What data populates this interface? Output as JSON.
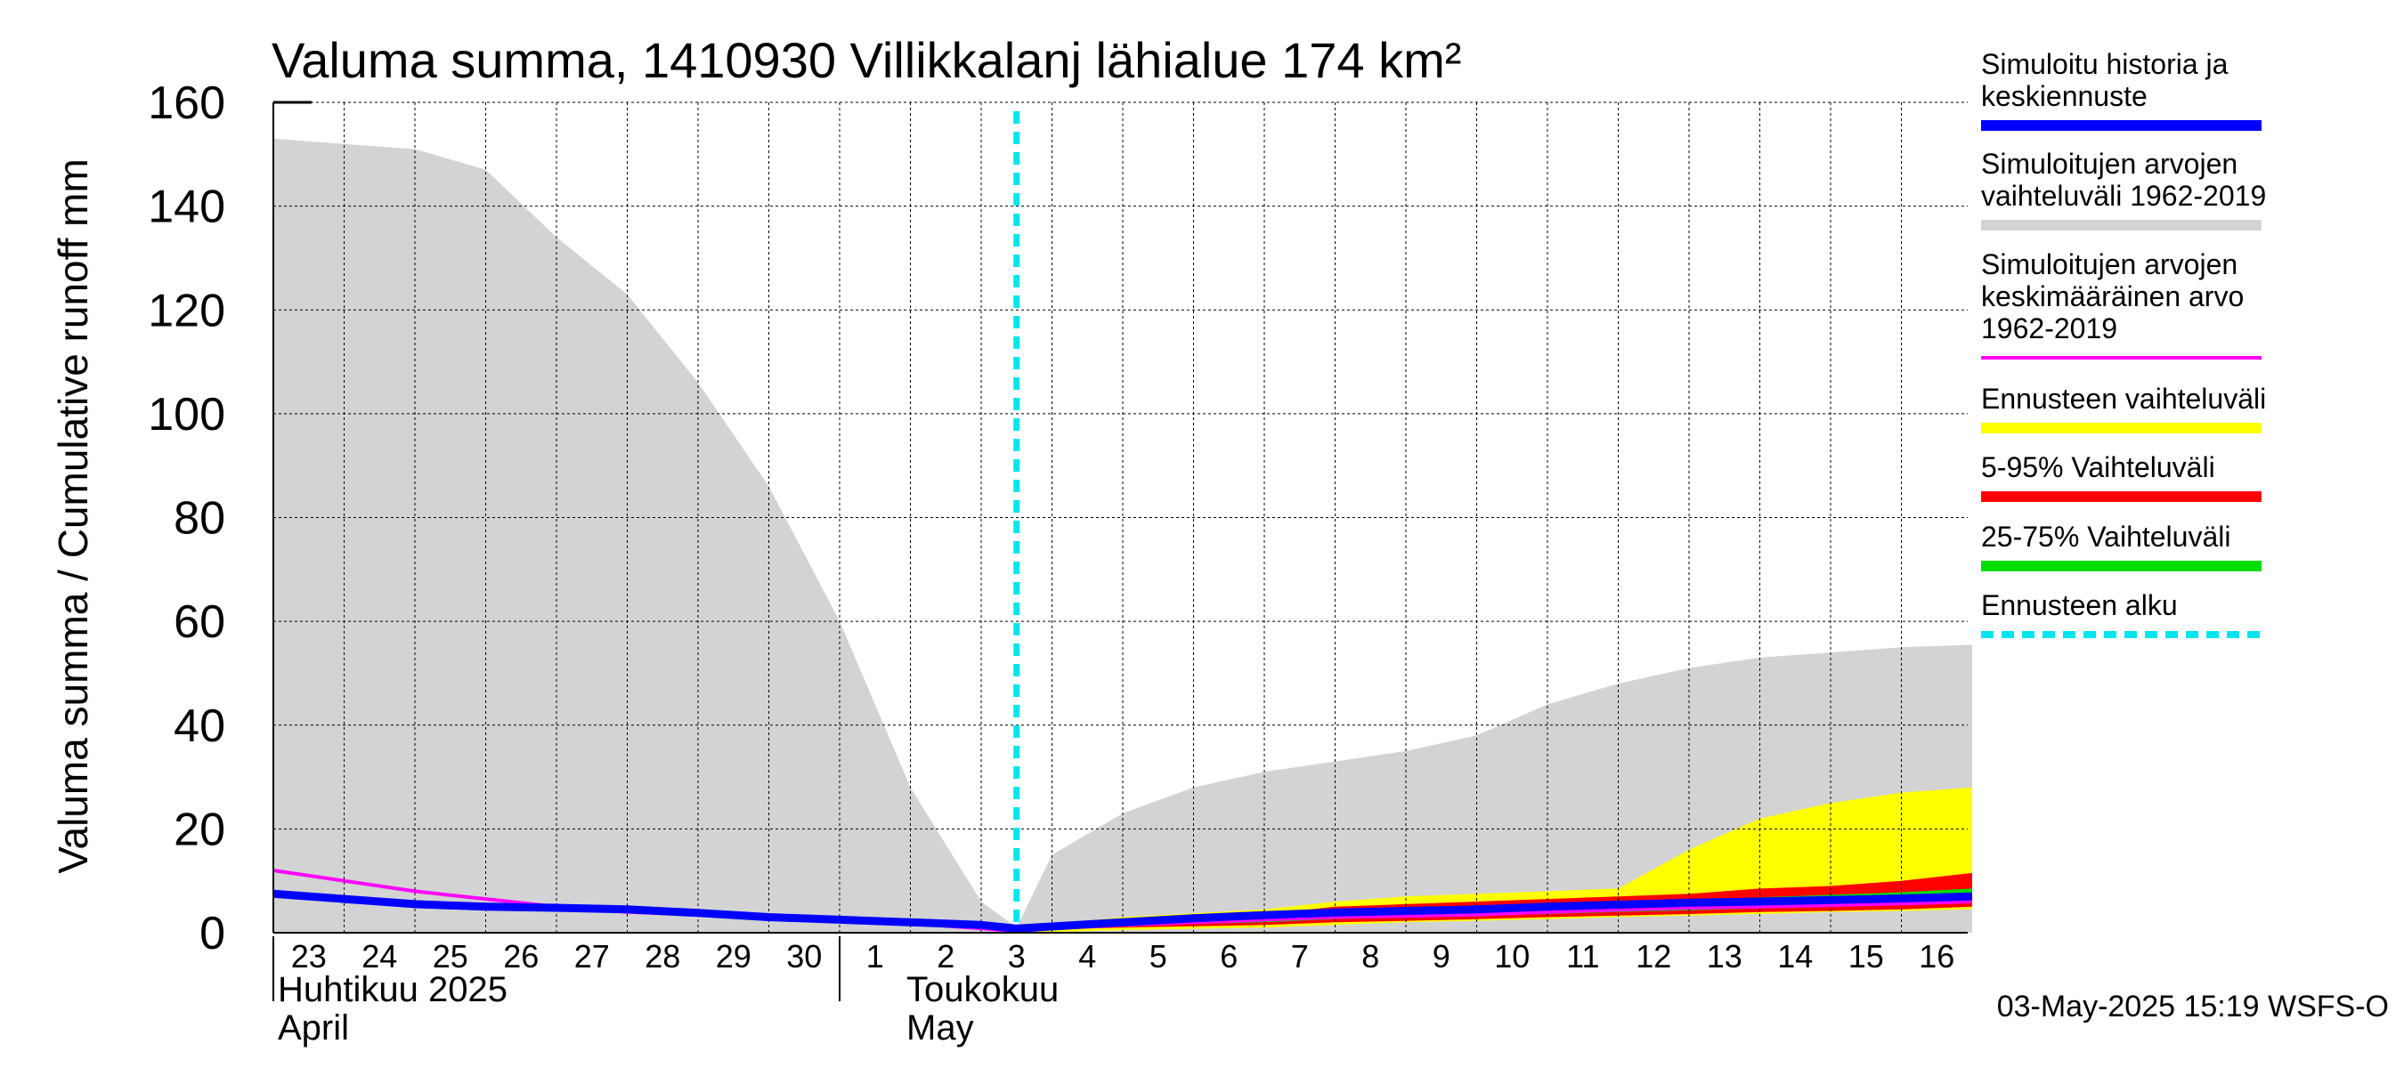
{
  "chart_data": {
    "type": "area",
    "title": "Valuma summa, 1410930 Villikkalanj lähialue 174 km²",
    "ylabel": "Valuma summa / Cumulative runoff    mm",
    "ylim": [
      0,
      160
    ],
    "yticks": [
      "0",
      "20",
      "40",
      "60",
      "80",
      "100",
      "120",
      "140",
      "160"
    ],
    "x_day_labels": [
      "23",
      "24",
      "25",
      "26",
      "27",
      "28",
      "29",
      "30",
      "1",
      "2",
      "3",
      "4",
      "5",
      "6",
      "7",
      "8",
      "9",
      "10",
      "11",
      "12",
      "13",
      "14",
      "15",
      "16"
    ],
    "months": [
      {
        "line1": "Huhtikuu  2025",
        "line2": "April"
      },
      {
        "line1": "Toukokuu",
        "line2": "May"
      }
    ],
    "forecast_start_day": 10.5,
    "grid": true,
    "legend_position": "right",
    "series": [
      {
        "name": "Simuloitujen arvojen vaihteluväli 1962-2019",
        "kind": "band",
        "color": "#d3d3d3",
        "x": [
          0,
          1,
          2,
          3,
          4,
          5,
          6,
          7,
          8,
          9,
          10,
          10.5,
          11,
          12,
          13,
          14,
          15,
          16,
          17,
          18,
          19,
          20,
          21,
          22,
          23,
          24
        ],
        "upper": [
          153,
          152,
          151,
          147,
          134,
          123,
          106,
          86,
          60,
          28,
          6,
          1,
          15,
          23,
          28,
          31,
          33,
          35,
          38,
          44,
          48,
          51,
          53,
          54,
          55,
          55.5
        ],
        "lower": [
          0,
          0,
          0,
          0,
          0,
          0,
          0,
          0,
          0,
          0,
          0,
          0,
          0,
          0,
          0,
          0,
          0,
          0,
          0,
          0,
          0,
          0,
          0,
          0,
          0,
          0
        ]
      },
      {
        "name": "Ennusteen vaihteluväli",
        "kind": "band",
        "color": "#ffff00",
        "x": [
          10.5,
          12,
          14,
          15,
          16,
          17,
          18,
          19,
          20,
          21,
          22,
          23,
          24
        ],
        "upper": [
          1,
          3,
          4.5,
          6,
          7,
          7.5,
          8,
          8.5,
          16,
          22,
          25,
          27,
          28
        ],
        "lower": [
          0,
          0.5,
          1,
          1.5,
          2,
          2.3,
          2.6,
          3,
          3.3,
          3.6,
          4,
          4.2,
          4.5
        ]
      },
      {
        "name": "5-95% Vaihteluväli",
        "kind": "band",
        "color": "#ff0000",
        "x": [
          10.5,
          12,
          14,
          15,
          16,
          17,
          18,
          19,
          20,
          21,
          22,
          23,
          24
        ],
        "upper": [
          1,
          2.5,
          3.5,
          5,
          5.5,
          6,
          6.5,
          7,
          7.5,
          8.5,
          9,
          10,
          11.5
        ],
        "lower": [
          0.5,
          1,
          1.5,
          2,
          2.3,
          2.6,
          3,
          3.3,
          3.6,
          4,
          4.2,
          4.5,
          5
        ]
      },
      {
        "name": "25-75% Vaihteluväli",
        "kind": "band",
        "color": "#00dd00",
        "x": [
          10.5,
          12,
          14,
          15,
          16,
          17,
          18,
          19,
          20,
          21,
          22,
          23,
          24
        ],
        "upper": [
          0.8,
          2.2,
          3.2,
          4.2,
          4.6,
          5,
          5.4,
          5.8,
          6.2,
          6.8,
          7.3,
          7.8,
          8.5
        ],
        "lower": [
          0.6,
          1.4,
          2,
          2.6,
          3,
          3.3,
          3.6,
          4,
          4.3,
          4.7,
          5,
          5.4,
          5.8
        ]
      },
      {
        "name": "Simuloitujen arvojen keskimääräinen arvo 1962-2019",
        "kind": "line",
        "color": "#ff00ff",
        "x": [
          0,
          1,
          2,
          3,
          4,
          5,
          6,
          7,
          8,
          9,
          10,
          10.5,
          11,
          12,
          13,
          14,
          15,
          16,
          17,
          18,
          19,
          20,
          21,
          22,
          23,
          24
        ],
        "values": [
          12,
          10,
          8,
          6.5,
          5,
          4,
          3.5,
          3,
          2.5,
          1.8,
          0.8,
          0.3,
          0.8,
          1.5,
          2,
          2.5,
          3,
          3.2,
          3.5,
          4,
          4.4,
          4.8,
          5,
          5.3,
          5.6,
          6
        ]
      },
      {
        "name": "Simuloitu historia ja keskiennuste",
        "kind": "line",
        "color": "#0000ff",
        "x": [
          0,
          1,
          2,
          3,
          4,
          5,
          6,
          7,
          8,
          9,
          10,
          10.5,
          11,
          12,
          13,
          14,
          15,
          16,
          17,
          18,
          19,
          20,
          21,
          22,
          23,
          24
        ],
        "values": [
          7.5,
          6.5,
          5.5,
          5,
          4.8,
          4.5,
          3.8,
          3,
          2.5,
          2,
          1.5,
          0.8,
          1.2,
          2,
          2.8,
          3.4,
          3.9,
          4.2,
          4.5,
          5,
          5.4,
          5.8,
          6,
          6.3,
          6.6,
          7
        ]
      }
    ],
    "legend": [
      {
        "lines": [
          "Simuloitu historia ja",
          "keskiennuste"
        ],
        "color": "#0000ff",
        "style": "solid"
      },
      {
        "lines": [
          "Simuloitujen arvojen",
          "vaihteluväli 1962-2019"
        ],
        "color": "#d3d3d3",
        "style": "solid"
      },
      {
        "lines": [
          "Simuloitujen arvojen",
          "keskimääräinen arvo",
          "   1962-2019"
        ],
        "color": "#ff00ff",
        "style": "thin"
      },
      {
        "lines": [
          "Ennusteen vaihteluväli"
        ],
        "color": "#ffff00",
        "style": "solid"
      },
      {
        "lines": [
          "5-95% Vaihteluväli"
        ],
        "color": "#ff0000",
        "style": "solid"
      },
      {
        "lines": [
          "25-75% Vaihteluväli"
        ],
        "color": "#00dd00",
        "style": "solid"
      },
      {
        "lines": [
          "Ennusteen alku"
        ],
        "color": "#00e5ee",
        "style": "dashed"
      }
    ]
  },
  "footer": {
    "timestamp": "03-May-2025 15:19 WSFS-O"
  }
}
